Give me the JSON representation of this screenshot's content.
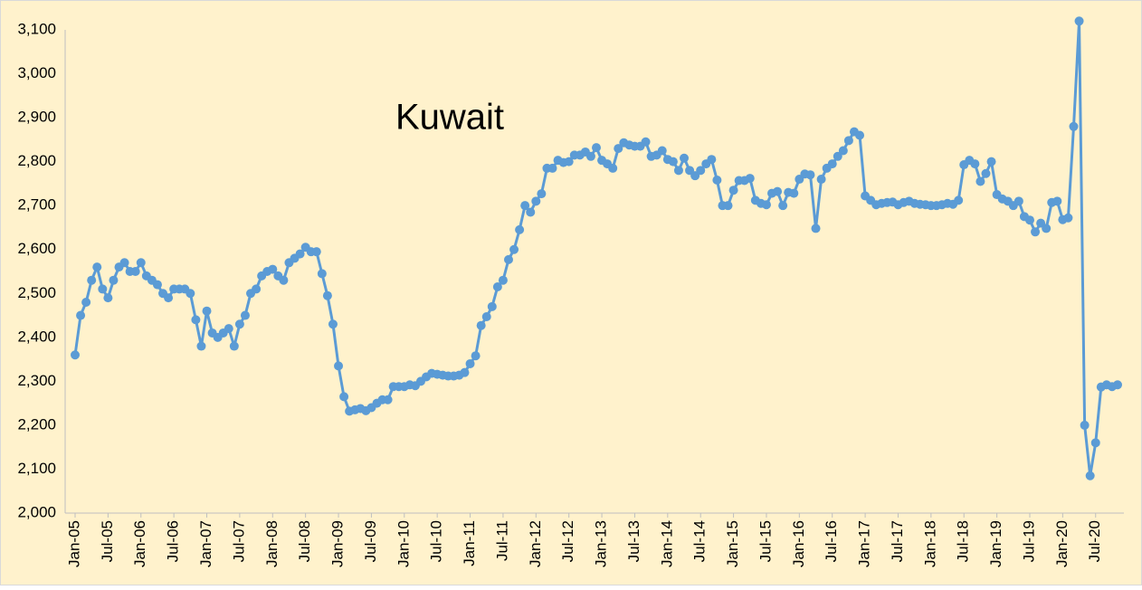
{
  "chart_data": {
    "type": "line",
    "title": "Kuwait",
    "color": "#5b9bd5",
    "categories": [
      "Jan-05",
      null,
      null,
      null,
      null,
      null,
      "Jul-05",
      null,
      null,
      null,
      null,
      null,
      "Jan-06",
      null,
      null,
      null,
      null,
      null,
      "Jul-06",
      null,
      null,
      null,
      null,
      null,
      "Jan-07",
      null,
      null,
      null,
      null,
      null,
      "Jul-07",
      null,
      null,
      null,
      null,
      null,
      "Jan-08",
      null,
      null,
      null,
      null,
      null,
      "Jul-08",
      null,
      null,
      null,
      null,
      null,
      "Jan-09",
      null,
      null,
      null,
      null,
      null,
      "Jul-09",
      null,
      null,
      null,
      null,
      null,
      "Jan-10",
      null,
      null,
      null,
      null,
      null,
      "Jul-10",
      null,
      null,
      null,
      null,
      null,
      "Jan-11",
      null,
      null,
      null,
      null,
      null,
      "Jul-11",
      null,
      null,
      null,
      null,
      null,
      "Jan-12",
      null,
      null,
      null,
      null,
      null,
      "Jul-12",
      null,
      null,
      null,
      null,
      null,
      "Jan-13",
      null,
      null,
      null,
      null,
      null,
      "Jul-13",
      null,
      null,
      null,
      null,
      null,
      "Jan-14",
      null,
      null,
      null,
      null,
      null,
      "Jul-14",
      null,
      null,
      null,
      null,
      null,
      "Jan-15",
      null,
      null,
      null,
      null,
      null,
      "Jul-15",
      null,
      null,
      null,
      null,
      null,
      "Jan-16",
      null,
      null,
      null,
      null,
      null,
      "Jul-16",
      null,
      null,
      null,
      null,
      null,
      "Jan-17",
      null,
      null,
      null,
      null,
      null,
      "Jul-17",
      null,
      null,
      null,
      null,
      null,
      "Jan-18",
      null,
      null,
      null,
      null,
      null,
      "Jul-18",
      null,
      null,
      null,
      null,
      null,
      "Jan-19",
      null,
      null,
      null,
      null,
      null,
      "Jul-19",
      null,
      null,
      null,
      null,
      null,
      "Jan-20",
      null,
      null,
      null,
      null,
      null,
      "Jul-20",
      null,
      null,
      null,
      null
    ],
    "values": [
      2360,
      2450,
      2480,
      2530,
      2560,
      2510,
      2490,
      2530,
      2560,
      2570,
      2550,
      2550,
      2570,
      2540,
      2530,
      2520,
      2500,
      2490,
      2510,
      2510,
      2510,
      2500,
      2440,
      2380,
      2460,
      2410,
      2400,
      2410,
      2420,
      2380,
      2430,
      2450,
      2500,
      2510,
      2540,
      2550,
      2555,
      2540,
      2530,
      2570,
      2580,
      2590,
      2605,
      2595,
      2595,
      2545,
      2495,
      2430,
      2335,
      2265,
      2232,
      2235,
      2238,
      2233,
      2240,
      2250,
      2258,
      2258,
      2288,
      2288,
      2288,
      2292,
      2290,
      2300,
      2310,
      2318,
      2316,
      2314,
      2312,
      2312,
      2314,
      2320,
      2340,
      2358,
      2427,
      2447,
      2470,
      2515,
      2530,
      2577,
      2600,
      2645,
      2700,
      2685,
      2710,
      2727,
      2785,
      2785,
      2803,
      2798,
      2800,
      2815,
      2815,
      2822,
      2812,
      2832,
      2803,
      2795,
      2785,
      2830,
      2843,
      2838,
      2835,
      2835,
      2845,
      2812,
      2815,
      2825,
      2805,
      2800,
      2780,
      2808,
      2780,
      2768,
      2780,
      2795,
      2805,
      2758,
      2700,
      2700,
      2735,
      2757,
      2757,
      2762,
      2712,
      2705,
      2702,
      2728,
      2732,
      2700,
      2730,
      2728,
      2760,
      2772,
      2770,
      2648,
      2760,
      2785,
      2795,
      2812,
      2825,
      2848,
      2868,
      2860,
      2722,
      2712,
      2702,
      2705,
      2707,
      2708,
      2702,
      2707,
      2710,
      2705,
      2703,
      2702,
      2700,
      2700,
      2702,
      2705,
      2703,
      2712,
      2793,
      2803,
      2795,
      2755,
      2773,
      2800,
      2725,
      2715,
      2710,
      2700,
      2710,
      2675,
      2667,
      2640,
      2660,
      2648,
      2707,
      2710,
      2668,
      2672,
      2880,
      3120,
      2200,
      2085,
      2160,
      2287,
      2292,
      2288,
      2292
    ],
    "ylim": [
      2000,
      3100
    ],
    "yticks": [
      {
        "value": 2000,
        "label": "2,000"
      },
      {
        "value": 2100,
        "label": "2,100"
      },
      {
        "value": 2200,
        "label": "2,200"
      },
      {
        "value": 2300,
        "label": "2,300"
      },
      {
        "value": 2400,
        "label": "2,400"
      },
      {
        "value": 2500,
        "label": "2,500"
      },
      {
        "value": 2600,
        "label": "2,600"
      },
      {
        "value": 2700,
        "label": "2,700"
      },
      {
        "value": 2800,
        "label": "2,800"
      },
      {
        "value": 2900,
        "label": "2,900"
      },
      {
        "value": 3000,
        "label": "3,000"
      },
      {
        "value": 3100,
        "label": "3,100"
      }
    ],
    "grid": false
  }
}
